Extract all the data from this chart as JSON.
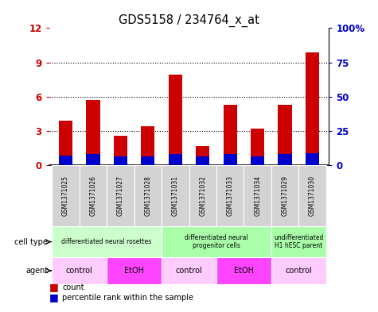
{
  "title": "GDS5158 / 234764_x_at",
  "samples": [
    "GSM1371025",
    "GSM1371026",
    "GSM1371027",
    "GSM1371028",
    "GSM1371031",
    "GSM1371032",
    "GSM1371033",
    "GSM1371034",
    "GSM1371029",
    "GSM1371030"
  ],
  "count_values": [
    3.9,
    5.7,
    2.6,
    3.4,
    7.9,
    1.7,
    5.3,
    3.2,
    5.3,
    9.9
  ],
  "percentile_values": [
    7.0,
    8.0,
    6.5,
    6.5,
    8.0,
    6.5,
    8.0,
    6.5,
    8.0,
    9.0
  ],
  "bar_color": "#cc0000",
  "percentile_color": "#0000cc",
  "ylim_left": [
    0,
    12
  ],
  "ylim_right": [
    0,
    100
  ],
  "yticks_left": [
    0,
    3,
    6,
    9,
    12
  ],
  "ytick_labels_left": [
    "0",
    "3",
    "6",
    "9",
    "12"
  ],
  "ytick_labels_right": [
    "0",
    "25",
    "50",
    "75",
    "100%"
  ],
  "cell_type_groups": [
    {
      "label": "differentiated neural rosettes",
      "start": 0,
      "end": 4,
      "color": "#ccffcc"
    },
    {
      "label": "differentiated neural\nprogenitor cells",
      "start": 4,
      "end": 8,
      "color": "#aaffaa"
    },
    {
      "label": "undifferentiated\nH1 hESC parent",
      "start": 8,
      "end": 10,
      "color": "#aaffaa"
    }
  ],
  "agent_groups": [
    {
      "label": "control",
      "start": 0,
      "end": 2,
      "color": "#ffccff"
    },
    {
      "label": "EtOH",
      "start": 2,
      "end": 4,
      "color": "#ff44ff"
    },
    {
      "label": "control",
      "start": 4,
      "end": 6,
      "color": "#ffccff"
    },
    {
      "label": "EtOH",
      "start": 6,
      "end": 8,
      "color": "#ff44ff"
    },
    {
      "label": "control",
      "start": 8,
      "end": 10,
      "color": "#ffccff"
    }
  ],
  "cell_type_label": "cell type",
  "agent_label": "agent",
  "legend_count": "count",
  "legend_percentile": "percentile rank within the sample",
  "bar_width": 0.5,
  "bg_color": "#ffffff",
  "tick_label_color_left": "#cc0000",
  "tick_label_color_right": "#0000cc"
}
